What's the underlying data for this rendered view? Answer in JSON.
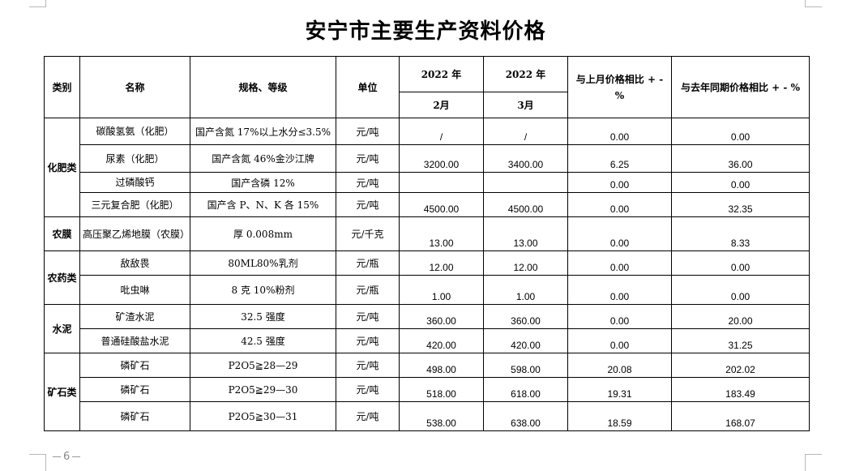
{
  "title": "安宁市主要生产资料价格",
  "page_number": "6",
  "header": {
    "category": "类别",
    "name": "名称",
    "spec": "规格、等级",
    "unit": "单位",
    "year1": "2022 年",
    "year2": "2022 年",
    "month1": "2月",
    "month2": "3月",
    "mom": "与上月价格相比 + - %",
    "yoy": "与去年同期价格相比 + - %"
  },
  "categories": {
    "fertilizer": "化肥类",
    "film": "农膜",
    "pesticide": "农药类",
    "cement": "水泥",
    "ore": "矿石类"
  },
  "rows": [
    {
      "name": "碳酸氢氨（化肥）",
      "spec": "国产含氮 17%以上水分≤3.5%",
      "unit": "元/吨",
      "feb": "/",
      "mar": "/",
      "mom": "0.00",
      "yoy": "0.00"
    },
    {
      "name": "尿素（化肥）",
      "spec": "国产含氮 46%金沙江牌",
      "unit": "元/吨",
      "feb": "3200.00",
      "mar": "3400.00",
      "mom": "6.25",
      "yoy": "36.00"
    },
    {
      "name": "过磷酸钙",
      "spec": "国产含磷 12%",
      "unit": "元/吨",
      "feb": "",
      "mar": "",
      "mom": "0.00",
      "yoy": "0.00"
    },
    {
      "name": "三元复合肥（化肥）",
      "spec": "国产含 P、N、K 各 15%",
      "unit": "元/吨",
      "feb": "4500.00",
      "mar": "4500.00",
      "mom": "0.00",
      "yoy": "32.35"
    },
    {
      "name": "高压聚乙烯地膜（农膜）",
      "spec": "厚 0.008mm",
      "unit": "元/千克",
      "feb": "13.00",
      "mar": "13.00",
      "mom": "0.00",
      "yoy": "8.33"
    },
    {
      "name": "敌敌畏",
      "spec": "80ML80%乳剂",
      "unit": "元/瓶",
      "feb": "12.00",
      "mar": "12.00",
      "mom": "0.00",
      "yoy": "0.00"
    },
    {
      "name": "吡虫啉",
      "spec": "8 克 10%粉剂",
      "unit": "元/瓶",
      "feb": "1.00",
      "mar": "1.00",
      "mom": "0.00",
      "yoy": "0.00"
    },
    {
      "name": "矿渣水泥",
      "spec": "32.5 强度",
      "unit": "元/吨",
      "feb": "360.00",
      "mar": "360.00",
      "mom": "0.00",
      "yoy": "20.00"
    },
    {
      "name": "普通硅酸盐水泥",
      "spec": "42.5 强度",
      "unit": "元/吨",
      "feb": "420.00",
      "mar": "420.00",
      "mom": "0.00",
      "yoy": "31.25"
    },
    {
      "name": "磷矿石",
      "spec": "P2O5≧28—29",
      "unit": "元/吨",
      "feb": "498.00",
      "mar": "598.00",
      "mom": "20.08",
      "yoy": "202.02"
    },
    {
      "name": "磷矿石",
      "spec": "P2O5≧29—30",
      "unit": "元/吨",
      "feb": "518.00",
      "mar": "618.00",
      "mom": "19.31",
      "yoy": "183.49"
    },
    {
      "name": "磷矿石",
      "spec": "P2O5≧30—31",
      "unit": "元/吨",
      "feb": "538.00",
      "mar": "638.00",
      "mom": "18.59",
      "yoy": "168.07"
    }
  ]
}
